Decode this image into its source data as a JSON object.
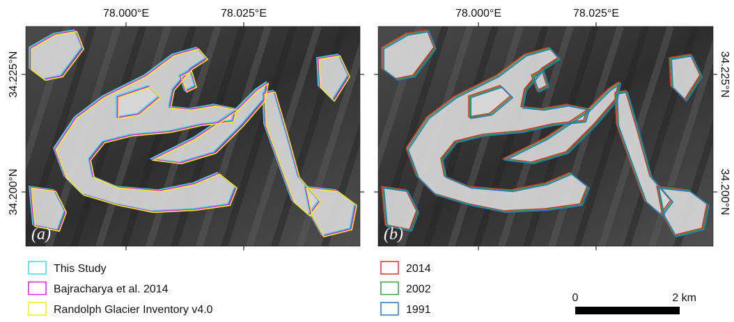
{
  "panels": [
    {
      "label": "(a)",
      "x_ticks": [
        "78.000°E",
        "78.025°E"
      ],
      "y_ticks": [
        "34.225°N",
        "34.200°N"
      ],
      "legend": [
        {
          "name": "This Study",
          "color": "#33e0e8"
        },
        {
          "name": "Bajracharya et al. 2014",
          "color": "#e020e0"
        },
        {
          "name": "Randolph Glacier Inventory v4.0",
          "color": "#f0f020"
        }
      ]
    },
    {
      "label": "(b)",
      "x_ticks": [
        "78.000°E",
        "78.025°E"
      ],
      "y_ticks": [
        "34.225°N",
        "34.200°N"
      ],
      "legend": [
        {
          "name": "2014",
          "color": "#e0302a"
        },
        {
          "name": "2002",
          "color": "#30a040"
        },
        {
          "name": "1991",
          "color": "#2878c0"
        }
      ]
    }
  ],
  "scale_bar": {
    "start": "0",
    "end": "2 km"
  }
}
